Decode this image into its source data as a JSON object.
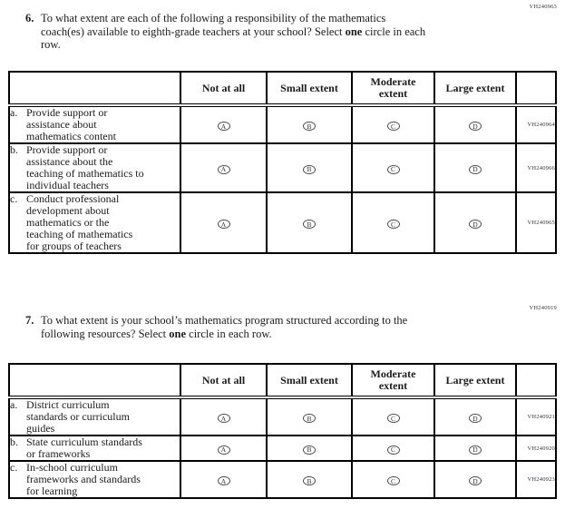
{
  "options": [
    "Not at all",
    "Small extent",
    "Moderate extent",
    "Large extent"
  ],
  "bubble_letters": [
    "A",
    "B",
    "C",
    "D"
  ],
  "questions": [
    {
      "number": "6.",
      "vh_code": "VH240963",
      "text_a": "To what extent are each of the following a responsibility of the mathematics\ncoach(es) available to eighth-grade teachers at your school? Select ",
      "bold_word": "one",
      "text_b": " circle in each\nrow.",
      "table": {
        "rows": [
          {
            "letter": "a.",
            "label": "Provide support or\nassistance about\nmathematics content",
            "vh_code": "VH240964"
          },
          {
            "letter": "b.",
            "label": "Provide support or\nassistance about the\nteaching of mathematics to\nindividual teachers",
            "vh_code": "VH240966"
          },
          {
            "letter": "c.",
            "label": "Conduct professional\ndevelopment about\nmathematics or the\nteaching of mathematics\nfor groups of teachers",
            "vh_code": "VH240965"
          }
        ]
      }
    },
    {
      "number": "7.",
      "vh_code": "VH240919",
      "text_a": "To what extent is your school’s mathematics program structured according to the\nfollowing resources? Select ",
      "bold_word": "one",
      "text_b": " circle in each row.",
      "table": {
        "rows": [
          {
            "letter": "a.",
            "label": "District curriculum\nstandards or curriculum\nguides",
            "vh_code": "VH240921"
          },
          {
            "letter": "b.",
            "label": "State curriculum standards\nor frameworks",
            "vh_code": "VH240920"
          },
          {
            "letter": "c.",
            "label": "In-school curriculum\nframeworks and standards\nfor learning",
            "vh_code": "VH240923"
          }
        ]
      }
    }
  ]
}
